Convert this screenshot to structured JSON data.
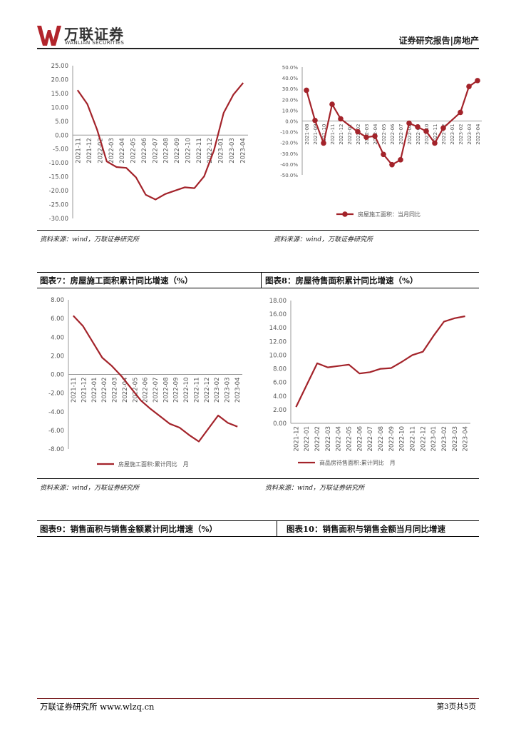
{
  "header": {
    "logo_cn": "万联证券",
    "logo_en": "WANLIAN SECURITIES",
    "report_type": "证券研究报告|房地产"
  },
  "sources": {
    "s1": "资料来源：wind，万联证券研究所",
    "s2": "资料来源：wind，万联证券研究所",
    "s3": "资料来源：wind，万联证券研究所",
    "s4": "资料来源：wind，万联证券研究所"
  },
  "captions": {
    "fig7": "图表7：房屋施工面积累计同比增速（%）",
    "fig8": "图表8：房屋待售面积累计同比增速（%）",
    "fig9": "图表9：销售面积与销售金额累计同比增速（%）",
    "fig10": "图表10：销售面积与销售金额当月同比增速"
  },
  "footer": {
    "left": "万联证券研究所 www.wlzq.cn",
    "right": "第3页共5页"
  },
  "colors": {
    "series": "#a3232a",
    "axis": "#999999",
    "text": "#555555"
  },
  "chart_data": [
    {
      "type": "line",
      "id": "c1",
      "legend": "",
      "categories": [
        "2021-11",
        "2021-12",
        "2022-01",
        "2022-02",
        "2022-03",
        "2022-04",
        "2022-05",
        "2022-06",
        "2022-07",
        "2022-08",
        "2022-09",
        "2022-10",
        "2022-11",
        "2022-12",
        "2023-01",
        "2023-02",
        "2023-03",
        "2023-04"
      ],
      "tick_labels": [
        "2021-11",
        "2021-12",
        "2022-02",
        "2022-03",
        "2022-04",
        "2022-05",
        "2022-06",
        "2022-07",
        "2022-08",
        "2022-09",
        "2022-10",
        "2022-11",
        "2022-12",
        "2023-01",
        "2023-03",
        "2023-04"
      ],
      "values": [
        16.2,
        11.2,
        2.0,
        -9.5,
        -11.5,
        -11.8,
        -15.2,
        -21.5,
        -23.2,
        -21.2,
        -20.0,
        -18.8,
        -19.1,
        -14.8,
        -5.5,
        8.0,
        14.6,
        18.8
      ],
      "y_ticks": [
        "25.00",
        "20.00",
        "15.00",
        "10.00",
        "5.00",
        "0.00",
        "-5.00",
        "-10.00",
        "-15.00",
        "-20.00",
        "-25.00",
        "-30.00"
      ],
      "ylim": [
        -30,
        25
      ]
    },
    {
      "type": "line",
      "id": "c2",
      "legend": "房屋施工面积：当月同比",
      "categories": [
        "2021-08",
        "2021-09",
        "2021-10",
        "2021-11",
        "2021-12",
        "2022-01",
        "2022-02",
        "2022-03",
        "2022-04",
        "2022-05",
        "2022-06",
        "2022-07",
        "2022-08",
        "2022-09",
        "2022-10",
        "2022-11",
        "2022-12",
        "2023-01",
        "2023-02",
        "2023-03",
        "2023-04"
      ],
      "tick_labels": [
        "2021-08",
        "2021-09",
        "2021-10",
        "2021-11",
        "2021-12",
        "2022-01",
        "2022-02",
        "2022-03",
        "2022-04",
        "2022-05",
        "2022-06",
        "2022-07",
        "2022-08",
        "2022-09",
        "2022-10",
        "2022-11",
        "2022-12",
        "2023-01",
        "2023-02",
        "2023-03",
        "2023-04"
      ],
      "values": [
        28.5,
        0.5,
        -20.5,
        15.5,
        2.0,
        null,
        -10.0,
        -15.0,
        -14.0,
        -31.0,
        -40.5,
        -36.0,
        -2.0,
        -5.5,
        -9.5,
        -20.5,
        -6.5,
        null,
        8.0,
        32.0,
        37.5
      ],
      "markers": true,
      "y_ticks": [
        "50.0%",
        "40.0%",
        "30.0%",
        "20.0%",
        "10.0%",
        "0.0%",
        "-10.0%",
        "-20.0%",
        "-30.0%",
        "-40.0%",
        "-50.0%"
      ],
      "ylim": [
        -50,
        50
      ]
    },
    {
      "type": "line",
      "id": "c3",
      "legend": "房屋施工面积:累计同比　月",
      "categories": [
        "2021-11",
        "2021-12",
        "2022-01",
        "2022-02",
        "2022-03",
        "2022-04",
        "2022-05",
        "2022-06",
        "2022-07",
        "2022-08",
        "2022-09",
        "2022-10",
        "2022-11",
        "2022-12",
        "2023-01",
        "2023-02",
        "2023-03",
        "2023-04"
      ],
      "tick_labels": [
        "2021-11",
        "2021-12",
        "2022-01",
        "2022-02",
        "2022-03",
        "2022-04",
        "2022-05",
        "2022-06",
        "2022-07",
        "2022-08",
        "2022-09",
        "2022-10",
        "2022-11",
        "2022-12",
        "2023-02",
        "2023-03",
        "2023-04"
      ],
      "values": [
        6.3,
        5.2,
        3.5,
        1.8,
        0.9,
        -0.2,
        -1.5,
        -2.8,
        -3.7,
        -4.5,
        -5.3,
        -5.7,
        -6.5,
        -7.2,
        null,
        -4.4,
        -5.2,
        -5.6
      ],
      "y_ticks": [
        "8.00",
        "6.00",
        "4.00",
        "2.00",
        "0.00",
        "-2.00",
        "-4.00",
        "-6.00",
        "-8.00"
      ],
      "ylim": [
        -8,
        8
      ]
    },
    {
      "type": "line",
      "id": "c4",
      "legend": "商品房待售面积:累计同比　月",
      "categories": [
        "2021-12",
        "2022-01",
        "2022-02",
        "2022-03",
        "2022-04",
        "2022-05",
        "2022-06",
        "2022-07",
        "2022-08",
        "2022-09",
        "2022-10",
        "2022-11",
        "2022-12",
        "2023-01",
        "2023-02",
        "2023-03",
        "2023-04"
      ],
      "tick_labels": [
        "2021-12",
        "2022-01",
        "2022-02",
        "2022-03",
        "2022-04",
        "2022-05",
        "2022-06",
        "2022-07",
        "2022-08",
        "2022-09",
        "2022-10",
        "2022-11",
        "2022-12",
        "2023-01",
        "2023-02",
        "2023-03",
        "2023-04"
      ],
      "values": [
        2.4,
        5.6,
        8.8,
        8.2,
        8.4,
        8.6,
        7.3,
        7.5,
        8.0,
        8.1,
        9.0,
        10.0,
        10.5,
        12.8,
        14.9,
        15.4,
        15.7
      ],
      "y_ticks": [
        "18.00",
        "16.00",
        "14.00",
        "12.00",
        "10.00",
        "8.00",
        "6.00",
        "4.00",
        "2.00",
        "0.00"
      ],
      "ylim": [
        0,
        18
      ]
    }
  ]
}
